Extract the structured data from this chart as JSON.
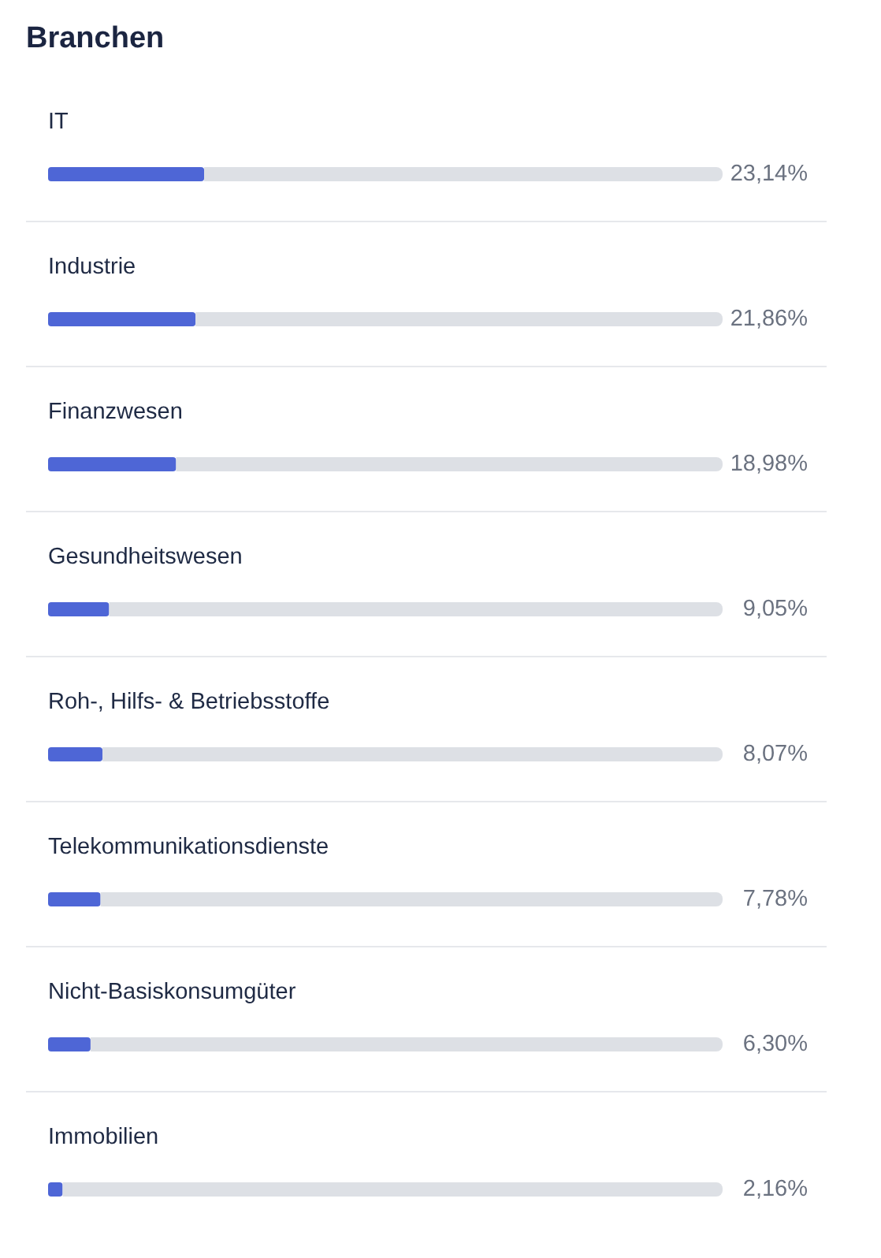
{
  "chart_data": {
    "type": "bar",
    "orientation": "horizontal",
    "stacked": true,
    "title": "Branchen",
    "categories": [
      "IT",
      "Industrie",
      "Finanzwesen",
      "Gesundheitswesen",
      "Roh-, Hilfs- & Betriebsstoffe",
      "Telekommunikationsdienste",
      "Nicht-Basiskonsumgüter",
      "Immobilien"
    ],
    "series": [
      {
        "color": "#4e66d6",
        "values": [
          23.14,
          21.86,
          18.98,
          9.05,
          8.07,
          7.78,
          6.3,
          2.16
        ],
        "value_labels": [
          "23,14%",
          "21,86%",
          "18,98%",
          "9,05%",
          "8,07%",
          "7,78%",
          "6,30%",
          "2,16%"
        ]
      },
      {
        "color": "#dde0e5",
        "values": [
          76.86,
          78.14,
          81.02,
          90.95,
          91.93,
          92.22,
          93.7,
          97.84
        ]
      }
    ],
    "xlim": [
      0,
      100
    ],
    "tick_labels": "y"
  }
}
